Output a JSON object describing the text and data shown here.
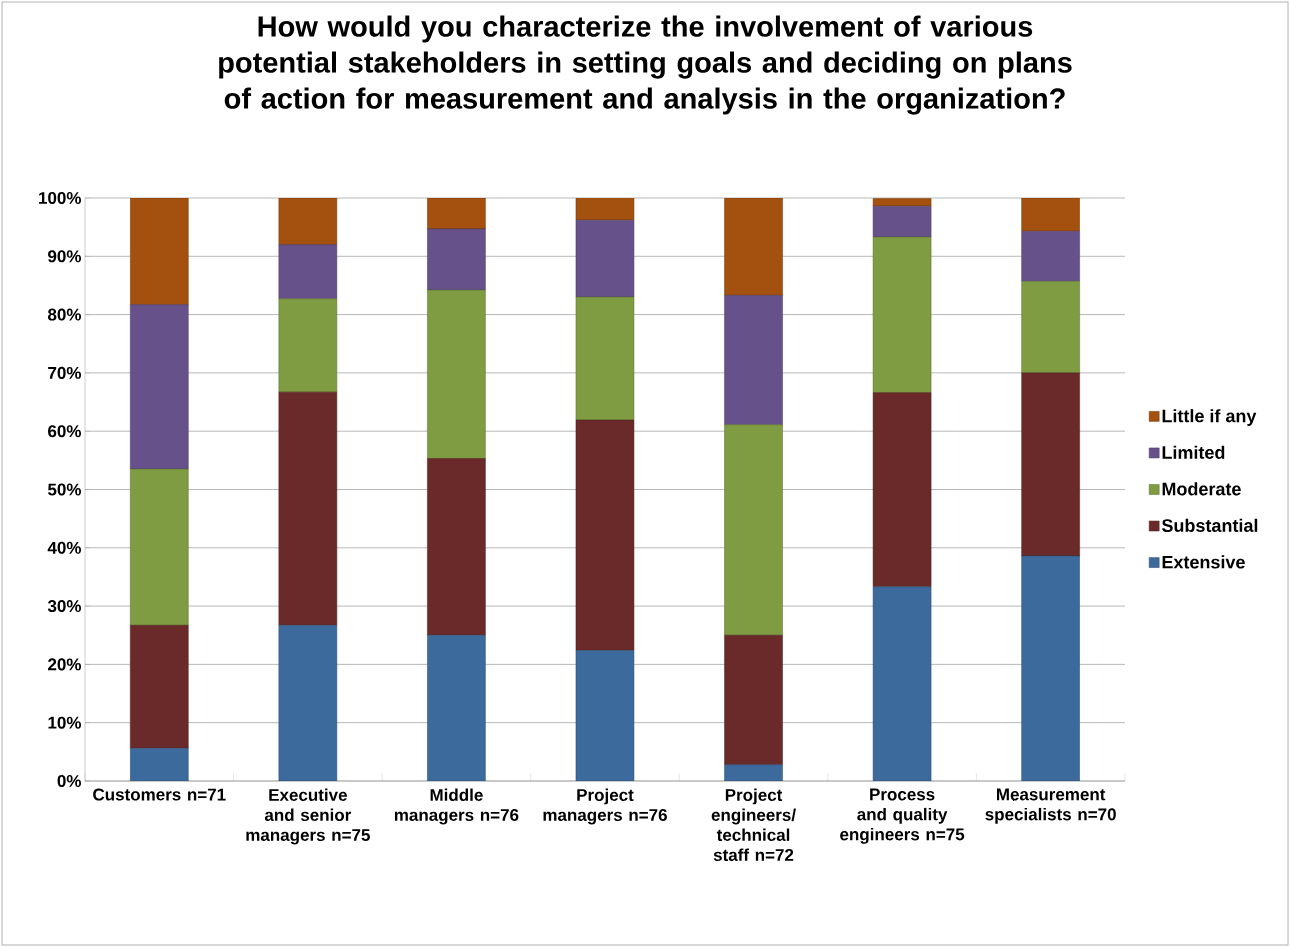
{
  "chart_data": {
    "type": "bar",
    "stacked": true,
    "title": "How would you characterize the involvement of various potential stakeholders in setting goals and deciding on plans of action for measurement and analysis in the organization?",
    "categories": [
      "Customers n=71",
      "Executive and senior managers n=75",
      "Middle managers n=76",
      "Project managers n=76",
      "Project engineers/ technical staff n=72",
      "Process and quality engineers n=75",
      "Measurement specialists n=70"
    ],
    "series": [
      {
        "name": "Extensive",
        "color": "#3d6a9c",
        "values": [
          5.6,
          26.7,
          25.0,
          22.4,
          2.8,
          33.3,
          38.6
        ]
      },
      {
        "name": "Substantial",
        "color": "#6b2a2a",
        "values": [
          21.1,
          40.0,
          30.3,
          39.5,
          22.2,
          33.3,
          31.4
        ]
      },
      {
        "name": "Moderate",
        "color": "#7f9c42",
        "values": [
          26.8,
          16.0,
          28.9,
          21.1,
          36.1,
          26.7,
          15.7
        ]
      },
      {
        "name": "Limited",
        "color": "#67518a",
        "values": [
          28.2,
          9.3,
          10.5,
          13.2,
          22.2,
          5.3,
          8.6
        ]
      },
      {
        "name": "Little if any",
        "color": "#a4500e",
        "values": [
          18.3,
          8.0,
          5.3,
          3.9,
          16.7,
          1.3,
          5.7
        ]
      }
    ],
    "ylim": [
      0,
      100
    ],
    "yticks": [
      {
        "value": 0,
        "label": "0%"
      },
      {
        "value": 10,
        "label": "10%"
      },
      {
        "value": 20,
        "label": "20%"
      },
      {
        "value": 30,
        "label": "30%"
      },
      {
        "value": 40,
        "label": "40%"
      },
      {
        "value": 50,
        "label": "50%"
      },
      {
        "value": 60,
        "label": "60%"
      },
      {
        "value": 70,
        "label": "70%"
      },
      {
        "value": 80,
        "label": "80%"
      },
      {
        "value": 90,
        "label": "90%"
      },
      {
        "value": 100,
        "label": "100%"
      }
    ],
    "grid": "y",
    "legend": "right"
  }
}
